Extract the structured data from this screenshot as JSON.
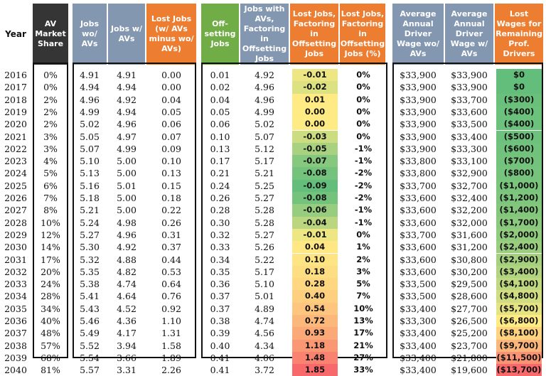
{
  "headers": {
    "year": "Year",
    "av_share": "AV Market Share",
    "jobs_wo": "Jobs wo/ AVs",
    "jobs_w": "Jobs w/ AVs",
    "lost_jobs": "Lost Jobs (w/ AVs minus wo/ AVs)",
    "offsetting": "Off-setting Jobs",
    "jobs_w_offset": "Jobs with AVs, Factoring in Offsetting Jobs",
    "lost_jobs_offset": "Lost Jobs, Factoring in Offsetting Jobs",
    "lost_jobs_pct": "Lost Jobs, Factoring in Offsetting Jobs (%)",
    "wage_wo": "Average Annual Driver Wage wo/ AVs",
    "wage_w": "Average Annual Driver Wage w/ AVs",
    "lost_wages": "Lost Wages for Remaining Prof. Drivers"
  },
  "colors": {
    "dark": "#353535",
    "blue": "#8497b0",
    "orange": "#ed7d31",
    "green": "#70ad47"
  },
  "rows": [
    {
      "year": "2016",
      "share": "0%",
      "jwo": "4.91",
      "jw": "4.91",
      "lost": "0.00",
      "off": "0.01",
      "jwoff": "4.92",
      "lostoff": "-0.01",
      "pct": "0%",
      "wwo": "$33,900",
      "ww": "$33,900",
      "lw": "$0"
    },
    {
      "year": "2017",
      "share": "0%",
      "jwo": "4.94",
      "jw": "4.94",
      "lost": "0.00",
      "off": "0.02",
      "jwoff": "4.96",
      "lostoff": "-0.02",
      "pct": "0%",
      "wwo": "$33,900",
      "ww": "$33,900",
      "lw": "$0"
    },
    {
      "year": "2018",
      "share": "2%",
      "jwo": "4.96",
      "jw": "4.92",
      "lost": "0.04",
      "off": "0.04",
      "jwoff": "4.96",
      "lostoff": "0.01",
      "pct": "0%",
      "wwo": "$33,900",
      "ww": "$33,700",
      "lw": "($300)"
    },
    {
      "year": "2019",
      "share": "2%",
      "jwo": "4.99",
      "jw": "4.94",
      "lost": "0.05",
      "off": "0.05",
      "jwoff": "4.99",
      "lostoff": "0.00",
      "pct": "0%",
      "wwo": "$33,900",
      "ww": "$33,600",
      "lw": "($400)"
    },
    {
      "year": "2020",
      "share": "2%",
      "jwo": "5.02",
      "jw": "4.96",
      "lost": "0.06",
      "off": "0.06",
      "jwoff": "5.02",
      "lostoff": "0.00",
      "pct": "0%",
      "wwo": "$33,900",
      "ww": "$33,500",
      "lw": "($400)"
    },
    {
      "year": "2021",
      "share": "3%",
      "jwo": "5.05",
      "jw": "4.97",
      "lost": "0.07",
      "off": "0.10",
      "jwoff": "5.07",
      "lostoff": "-0.03",
      "pct": "0%",
      "wwo": "$33,900",
      "ww": "$33,400",
      "lw": "($500)"
    },
    {
      "year": "2022",
      "share": "3%",
      "jwo": "5.07",
      "jw": "4.99",
      "lost": "0.09",
      "off": "0.13",
      "jwoff": "5.12",
      "lostoff": "-0.05",
      "pct": "-1%",
      "wwo": "$33,900",
      "ww": "$33,300",
      "lw": "($600)"
    },
    {
      "year": "2023",
      "share": "4%",
      "jwo": "5.10",
      "jw": "5.00",
      "lost": "0.10",
      "off": "0.17",
      "jwoff": "5.17",
      "lostoff": "-0.07",
      "pct": "-1%",
      "wwo": "$33,800",
      "ww": "$33,100",
      "lw": "($700)"
    },
    {
      "year": "2024",
      "share": "5%",
      "jwo": "5.13",
      "jw": "5.00",
      "lost": "0.13",
      "off": "0.21",
      "jwoff": "5.21",
      "lostoff": "-0.08",
      "pct": "-2%",
      "wwo": "$33,800",
      "ww": "$32,900",
      "lw": "($800)"
    },
    {
      "year": "2025",
      "share": "6%",
      "jwo": "5.16",
      "jw": "5.01",
      "lost": "0.15",
      "off": "0.24",
      "jwoff": "5.25",
      "lostoff": "-0.09",
      "pct": "-2%",
      "wwo": "$33,700",
      "ww": "$32,700",
      "lw": "($1,000)"
    },
    {
      "year": "2026",
      "share": "7%",
      "jwo": "5.18",
      "jw": "5.00",
      "lost": "0.18",
      "off": "0.26",
      "jwoff": "5.27",
      "lostoff": "-0.08",
      "pct": "-2%",
      "wwo": "$33,600",
      "ww": "$32,400",
      "lw": "($1,200)"
    },
    {
      "year": "2027",
      "share": "8%",
      "jwo": "5.21",
      "jw": "5.00",
      "lost": "0.22",
      "off": "0.28",
      "jwoff": "5.28",
      "lostoff": "-0.06",
      "pct": "-1%",
      "wwo": "$33,600",
      "ww": "$32,200",
      "lw": "($1,400)"
    },
    {
      "year": "2028",
      "share": "10%",
      "jwo": "5.24",
      "jw": "4.98",
      "lost": "0.26",
      "off": "0.30",
      "jwoff": "5.28",
      "lostoff": "-0.04",
      "pct": "-1%",
      "wwo": "$33,600",
      "ww": "$32,000",
      "lw": "($1,700)"
    },
    {
      "year": "2029",
      "share": "12%",
      "jwo": "5.27",
      "jw": "4.96",
      "lost": "0.31",
      "off": "0.32",
      "jwoff": "5.27",
      "lostoff": "-0.01",
      "pct": "0%",
      "wwo": "$33,700",
      "ww": "$31,600",
      "lw": "($2,000)"
    },
    {
      "year": "2030",
      "share": "14%",
      "jwo": "5.30",
      "jw": "4.92",
      "lost": "0.37",
      "off": "0.33",
      "jwoff": "5.26",
      "lostoff": "0.04",
      "pct": "1%",
      "wwo": "$33,600",
      "ww": "$31,200",
      "lw": "($2,400)"
    },
    {
      "year": "2031",
      "share": "17%",
      "jwo": "5.32",
      "jw": "4.88",
      "lost": "0.44",
      "off": "0.34",
      "jwoff": "5.22",
      "lostoff": "0.10",
      "pct": "2%",
      "wwo": "$33,600",
      "ww": "$30,800",
      "lw": "($2,900)"
    },
    {
      "year": "2032",
      "share": "20%",
      "jwo": "5.35",
      "jw": "4.82",
      "lost": "0.53",
      "off": "0.35",
      "jwoff": "5.17",
      "lostoff": "0.18",
      "pct": "3%",
      "wwo": "$33,600",
      "ww": "$30,200",
      "lw": "($3,400)"
    },
    {
      "year": "2033",
      "share": "24%",
      "jwo": "5.38",
      "jw": "4.74",
      "lost": "0.64",
      "off": "0.36",
      "jwoff": "5.10",
      "lostoff": "0.28",
      "pct": "5%",
      "wwo": "$33,500",
      "ww": "$29,500",
      "lw": "($4,100)"
    },
    {
      "year": "2034",
      "share": "28%",
      "jwo": "5.41",
      "jw": "4.64",
      "lost": "0.76",
      "off": "0.37",
      "jwoff": "5.01",
      "lostoff": "0.40",
      "pct": "7%",
      "wwo": "$33,500",
      "ww": "$28,600",
      "lw": "($4,800)"
    },
    {
      "year": "2035",
      "share": "34%",
      "jwo": "5.43",
      "jw": "4.52",
      "lost": "0.92",
      "off": "0.37",
      "jwoff": "4.89",
      "lostoff": "0.54",
      "pct": "10%",
      "wwo": "$33,400",
      "ww": "$27,700",
      "lw": "($5,700)"
    },
    {
      "year": "2036",
      "share": "40%",
      "jwo": "5.46",
      "jw": "4.36",
      "lost": "1.10",
      "off": "0.38",
      "jwoff": "4.74",
      "lostoff": "0.72",
      "pct": "13%",
      "wwo": "$33,300",
      "ww": "$26,500",
      "lw": "($6,800)"
    },
    {
      "year": "2037",
      "share": "48%",
      "jwo": "5.49",
      "jw": "4.17",
      "lost": "1.31",
      "off": "0.39",
      "jwoff": "4.56",
      "lostoff": "0.93",
      "pct": "17%",
      "wwo": "$33,400",
      "ww": "$25,200",
      "lw": "($8,100)"
    },
    {
      "year": "2038",
      "share": "57%",
      "jwo": "5.52",
      "jw": "3.94",
      "lost": "1.58",
      "off": "0.40",
      "jwoff": "4.34",
      "lostoff": "1.18",
      "pct": "21%",
      "wwo": "$33,400",
      "ww": "$23,700",
      "lw": "($9,700)"
    },
    {
      "year": "2039",
      "share": "68%",
      "jwo": "5.54",
      "jw": "3.66",
      "lost": "1.89",
      "off": "0.41",
      "jwoff": "4.06",
      "lostoff": "1.48",
      "pct": "27%",
      "wwo": "$33,400",
      "ww": "$21,800",
      "lw": "($11,500)"
    },
    {
      "year": "2040",
      "share": "81%",
      "jwo": "5.57",
      "jw": "3.31",
      "lost": "2.26",
      "off": "0.41",
      "jwoff": "3.72",
      "lostoff": "1.85",
      "pct": "33%",
      "wwo": "$33,400",
      "ww": "$19,600",
      "lw": "($13,700)"
    }
  ]
}
